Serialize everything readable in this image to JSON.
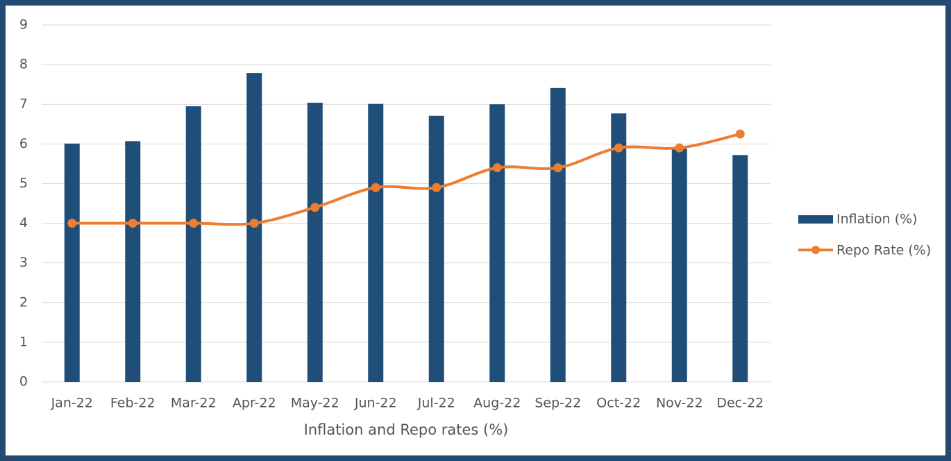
{
  "chart_data": {
    "type": "bar_line",
    "xlabel": "Inflation and Repo rates (%)",
    "categories": [
      "Jan-22",
      "Feb-22",
      "Mar-22",
      "Apr-22",
      "May-22",
      "Jun-22",
      "Jul-22",
      "Aug-22",
      "Sep-22",
      "Oct-22",
      "Nov-22",
      "Dec-22"
    ],
    "series": [
      {
        "name": "Inflation (%)",
        "type": "bar",
        "color": "#1f4e79",
        "values": [
          6.01,
          6.07,
          6.95,
          7.79,
          7.04,
          7.01,
          6.71,
          7.0,
          7.41,
          6.77,
          5.88,
          5.72
        ]
      },
      {
        "name": "Repo Rate (%)",
        "type": "line",
        "color": "#ed7d31",
        "values": [
          4,
          4,
          4,
          4,
          4.4,
          4.9,
          4.9,
          5.4,
          5.4,
          5.9,
          5.9,
          6.25
        ]
      }
    ],
    "ylim": [
      0,
      9
    ],
    "yticks": [
      0,
      1,
      2,
      3,
      4,
      5,
      6,
      7,
      8,
      9
    ],
    "grid": true,
    "legend": "right"
  }
}
